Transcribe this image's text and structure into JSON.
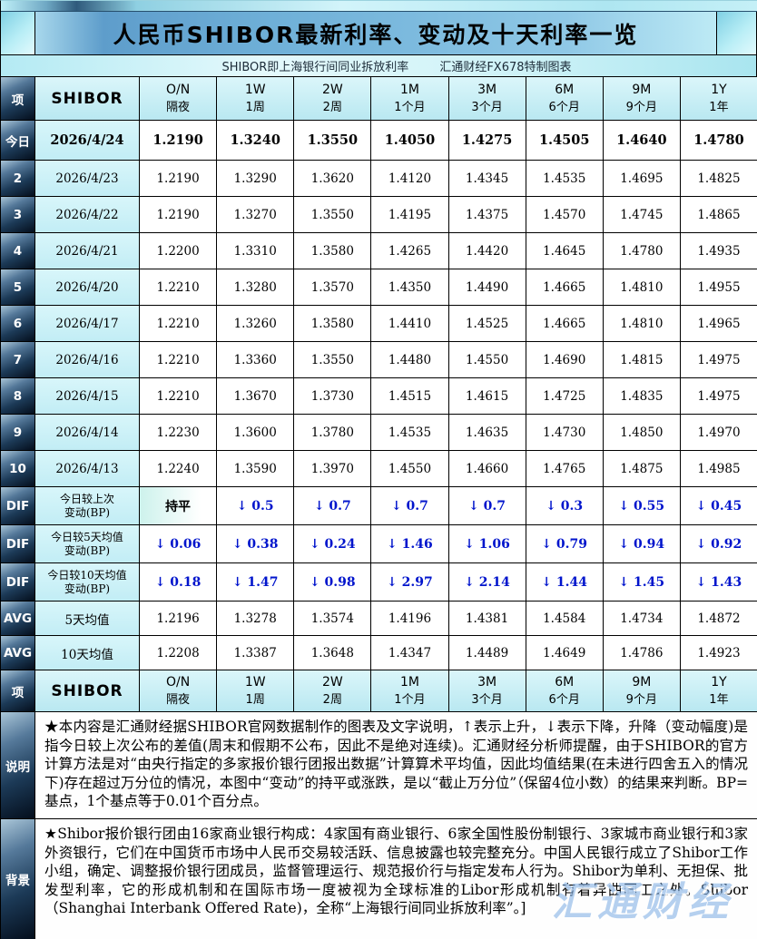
{
  "ui": {
    "top_title": "人民币SHIBOR最新利率、变动及十天利率一览",
    "subtitle_left": "SHIBOR即上海银行间同业拆放利率",
    "subtitle_right": "汇通财经FX678特制图表",
    "flat_label": "持平",
    "header": {
      "index": "项",
      "shibor": "SHIBOR",
      "cols": [
        [
          "O/N",
          "隔夜"
        ],
        [
          "1W",
          "1周"
        ],
        [
          "2W",
          "2周"
        ],
        [
          "1M",
          "1个月"
        ],
        [
          "3M",
          "3个月"
        ],
        [
          "6M",
          "6个月"
        ],
        [
          "9M",
          "9个月"
        ],
        [
          "1Y",
          "1年"
        ]
      ]
    },
    "today": {
      "index": "今日",
      "date": "2026/4/24",
      "values": [
        "1.2190",
        "1.3240",
        "1.3550",
        "1.4050",
        "1.4275",
        "1.4505",
        "1.4640",
        "1.4780"
      ]
    },
    "history": [
      {
        "index": "2",
        "date": "2026/4/23",
        "values": [
          "1.2190",
          "1.3290",
          "1.3620",
          "1.4120",
          "1.4345",
          "1.4535",
          "1.4695",
          "1.4825"
        ]
      },
      {
        "index": "3",
        "date": "2026/4/22",
        "values": [
          "1.2190",
          "1.3270",
          "1.3550",
          "1.4195",
          "1.4375",
          "1.4570",
          "1.4745",
          "1.4865"
        ]
      },
      {
        "index": "4",
        "date": "2026/4/21",
        "values": [
          "1.2200",
          "1.3310",
          "1.3580",
          "1.4265",
          "1.4420",
          "1.4645",
          "1.4780",
          "1.4935"
        ]
      },
      {
        "index": "5",
        "date": "2026/4/20",
        "values": [
          "1.2210",
          "1.3280",
          "1.3570",
          "1.4350",
          "1.4490",
          "1.4665",
          "1.4810",
          "1.4955"
        ]
      },
      {
        "index": "6",
        "date": "2026/4/17",
        "values": [
          "1.2210",
          "1.3260",
          "1.3580",
          "1.4410",
          "1.4525",
          "1.4665",
          "1.4810",
          "1.4965"
        ]
      },
      {
        "index": "7",
        "date": "2026/4/16",
        "values": [
          "1.2210",
          "1.3360",
          "1.3550",
          "1.4480",
          "1.4550",
          "1.4690",
          "1.4815",
          "1.4975"
        ]
      },
      {
        "index": "8",
        "date": "2026/4/15",
        "values": [
          "1.2210",
          "1.3670",
          "1.3730",
          "1.4515",
          "1.4615",
          "1.4725",
          "1.4835",
          "1.4975"
        ]
      },
      {
        "index": "9",
        "date": "2026/4/14",
        "values": [
          "1.2230",
          "1.3600",
          "1.3780",
          "1.4535",
          "1.4635",
          "1.4730",
          "1.4850",
          "1.4970"
        ]
      },
      {
        "index": "10",
        "date": "2026/4/13",
        "values": [
          "1.2240",
          "1.3590",
          "1.3970",
          "1.4550",
          "1.4660",
          "1.4765",
          "1.4875",
          "1.4985"
        ]
      }
    ],
    "dif": [
      {
        "index": "DIF",
        "label1": "今日较上次",
        "label2": "变动(BP)",
        "values": [
          "持平",
          "↓ 0.5",
          "↓ 0.7",
          "↓ 0.7",
          "↓ 0.7",
          "↓ 0.3",
          "↓ 0.55",
          "↓ 0.45"
        ]
      },
      {
        "index": "DIF",
        "label1": "今日较5天均值",
        "label2": "变动(BP)",
        "values": [
          "↓ 0.06",
          "↓ 0.38",
          "↓ 0.24",
          "↓ 1.46",
          "↓ 1.06",
          "↓ 0.79",
          "↓ 0.94",
          "↓ 0.92"
        ]
      },
      {
        "index": "DIF",
        "label1": "今日较10天均值",
        "label2": "变动(BP)",
        "values": [
          "↓ 0.18",
          "↓ 1.47",
          "↓ 0.98",
          "↓ 2.97",
          "↓ 2.14",
          "↓ 1.44",
          "↓ 1.45",
          "↓ 1.43"
        ]
      }
    ],
    "avg": [
      {
        "index": "AVG",
        "label": "5天均值",
        "values": [
          "1.2196",
          "1.3278",
          "1.3574",
          "1.4196",
          "1.4381",
          "1.4584",
          "1.4734",
          "1.4872"
        ]
      },
      {
        "index": "AVG",
        "label": "10天均值",
        "values": [
          "1.2208",
          "1.3387",
          "1.3648",
          "1.4347",
          "1.4489",
          "1.4649",
          "1.4786",
          "1.4923"
        ]
      }
    ],
    "notes": {
      "index": "说明",
      "text": "★本内容是汇通财经据SHIBOR官网数据制作的图表及文字说明，↑表示上升，↓表示下降，升降（变动幅度)是指今日较上次公布的差值(周末和假期不公布，因此不是绝对连续)。汇通财经分析师提醒，由于SHIBOR的官方计算方法是对“由央行指定的多家报价银行团报出数据”计算算术平均值，因此均值结果(在未进行四舍五入的情况下)存在超过万分位的情况，本图中“变动”的持平或涨跌，是以“截止万分位”（保留4位小数）的结果来判断。BP=基点，1个基点等于0.01个百分点。"
    },
    "background": {
      "index": "背景",
      "text": "★Shibor报价银行团由16家商业银行构成：4家国有商业银行、6家全国性股份制银行、3家城市商业银行和3家外资银行，它们在中国货币市场中人民币交易较活跃、信息披露也较完整充分。中国人民银行成立了Shibor工作小组，确定、调整报价银行团成员，监督管理运行、规范报价行与指定发布人行为。Shibor为单利、无担保、批发型利率，它的形成机制和在国际市场一度被视为全球标准的Libor形成机制有着异曲同工之处。Shibor（Shanghai Interbank Offered Rate)，全称“上海银行间同业拆放利率”。]"
    },
    "watermark": "汇通财经"
  },
  "chart_data": {
    "type": "table",
    "title": "人民币SHIBOR最新利率、变动及十天利率一览",
    "subtitle": "SHIBOR即上海银行间同业拆放利率 汇通财经FX678特制图表",
    "columns": [
      "O/N 隔夜",
      "1W 1周",
      "2W 2周",
      "1M 1个月",
      "3M 3个月",
      "6M 6个月",
      "9M 9个月",
      "1Y 1年"
    ],
    "rows": [
      {
        "date": "2026/4/24",
        "values": [
          1.219,
          1.324,
          1.355,
          1.405,
          1.4275,
          1.4505,
          1.464,
          1.478
        ]
      },
      {
        "date": "2026/4/23",
        "values": [
          1.219,
          1.329,
          1.362,
          1.412,
          1.4345,
          1.4535,
          1.4695,
          1.4825
        ]
      },
      {
        "date": "2026/4/22",
        "values": [
          1.219,
          1.327,
          1.355,
          1.4195,
          1.4375,
          1.457,
          1.4745,
          1.4865
        ]
      },
      {
        "date": "2026/4/21",
        "values": [
          1.22,
          1.331,
          1.358,
          1.4265,
          1.442,
          1.4645,
          1.478,
          1.4935
        ]
      },
      {
        "date": "2026/4/20",
        "values": [
          1.221,
          1.328,
          1.357,
          1.435,
          1.449,
          1.4665,
          1.481,
          1.4955
        ]
      },
      {
        "date": "2026/4/17",
        "values": [
          1.221,
          1.326,
          1.358,
          1.441,
          1.4525,
          1.4665,
          1.481,
          1.4965
        ]
      },
      {
        "date": "2026/4/16",
        "values": [
          1.221,
          1.336,
          1.355,
          1.448,
          1.455,
          1.469,
          1.4815,
          1.4975
        ]
      },
      {
        "date": "2026/4/15",
        "values": [
          1.221,
          1.367,
          1.373,
          1.4515,
          1.4615,
          1.4725,
          1.4835,
          1.4975
        ]
      },
      {
        "date": "2026/4/14",
        "values": [
          1.223,
          1.36,
          1.378,
          1.4535,
          1.4635,
          1.473,
          1.485,
          1.497
        ]
      },
      {
        "date": "2026/4/13",
        "values": [
          1.224,
          1.359,
          1.397,
          1.455,
          1.466,
          1.4765,
          1.4875,
          1.4985
        ]
      }
    ],
    "change_vs_prev_bp": [
      0,
      -0.5,
      -0.7,
      -0.7,
      -0.7,
      -0.3,
      -0.55,
      -0.45
    ],
    "change_vs_avg5_bp": [
      -0.06,
      -0.38,
      -0.24,
      -1.46,
      -1.06,
      -0.79,
      -0.94,
      -0.92
    ],
    "change_vs_avg10_bp": [
      -0.18,
      -1.47,
      -0.98,
      -2.97,
      -2.14,
      -1.44,
      -1.45,
      -1.43
    ],
    "avg5": [
      1.2196,
      1.3278,
      1.3574,
      1.4196,
      1.4381,
      1.4584,
      1.4734,
      1.4872
    ],
    "avg10": [
      1.2208,
      1.3387,
      1.3648,
      1.4347,
      1.4489,
      1.4649,
      1.4786,
      1.4923
    ]
  }
}
